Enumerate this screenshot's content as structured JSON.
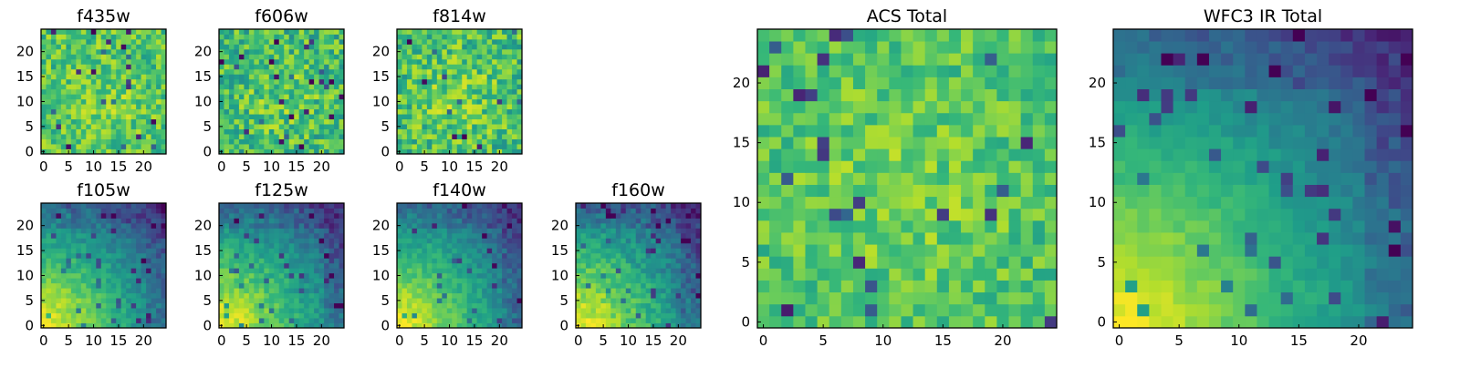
{
  "chart_data": [
    {
      "type": "heatmap",
      "title": "f435w",
      "colormap": "viridis",
      "rows": 25,
      "cols": 25,
      "xlim": [
        0,
        24
      ],
      "ylim": [
        0,
        24
      ],
      "x_ticks": [
        "0",
        "5",
        "10",
        "15",
        "20"
      ],
      "y_ticks": [
        "0",
        "5",
        "10",
        "15",
        "20"
      ],
      "value_range": [
        0,
        1
      ],
      "pattern": "noise",
      "mean": 0.72,
      "noise": 0.18
    },
    {
      "type": "heatmap",
      "title": "f606w",
      "colormap": "viridis",
      "rows": 25,
      "cols": 25,
      "xlim": [
        0,
        24
      ],
      "ylim": [
        0,
        24
      ],
      "x_ticks": [
        "0",
        "5",
        "10",
        "15",
        "20"
      ],
      "y_ticks": [
        "0",
        "5",
        "10",
        "15",
        "20"
      ],
      "value_range": [
        0,
        1
      ],
      "pattern": "noise",
      "mean": 0.68,
      "noise": 0.2
    },
    {
      "type": "heatmap",
      "title": "f814w",
      "colormap": "viridis",
      "rows": 25,
      "cols": 25,
      "xlim": [
        0,
        24
      ],
      "ylim": [
        0,
        24
      ],
      "x_ticks": [
        "0",
        "5",
        "10",
        "15",
        "20"
      ],
      "y_ticks": [
        "0",
        "5",
        "10",
        "15",
        "20"
      ],
      "value_range": [
        0,
        1
      ],
      "pattern": "noise",
      "mean": 0.7,
      "noise": 0.2
    },
    {
      "type": "heatmap",
      "title": "f105w",
      "colormap": "viridis",
      "rows": 25,
      "cols": 25,
      "xlim": [
        0,
        24
      ],
      "ylim": [
        0,
        24
      ],
      "x_ticks": [
        "0",
        "5",
        "10",
        "15",
        "20"
      ],
      "y_ticks": [
        "0",
        "5",
        "10",
        "15",
        "20"
      ],
      "value_range": [
        0,
        1
      ],
      "pattern": "gradient",
      "mean": 0.6,
      "noise": 0.08
    },
    {
      "type": "heatmap",
      "title": "f125w",
      "colormap": "viridis",
      "rows": 25,
      "cols": 25,
      "xlim": [
        0,
        24
      ],
      "ylim": [
        0,
        24
      ],
      "x_ticks": [
        "0",
        "5",
        "10",
        "15",
        "20"
      ],
      "y_ticks": [
        "0",
        "5",
        "10",
        "15",
        "20"
      ],
      "value_range": [
        0,
        1
      ],
      "pattern": "gradient",
      "mean": 0.58,
      "noise": 0.09
    },
    {
      "type": "heatmap",
      "title": "f140w",
      "colormap": "viridis",
      "rows": 25,
      "cols": 25,
      "xlim": [
        0,
        24
      ],
      "ylim": [
        0,
        24
      ],
      "x_ticks": [
        "0",
        "5",
        "10",
        "15",
        "20"
      ],
      "y_ticks": [
        "0",
        "5",
        "10",
        "15",
        "20"
      ],
      "value_range": [
        0,
        1
      ],
      "pattern": "gradient",
      "mean": 0.5,
      "noise": 0.08
    },
    {
      "type": "heatmap",
      "title": "f160w",
      "colormap": "viridis",
      "rows": 25,
      "cols": 25,
      "xlim": [
        0,
        24
      ],
      "ylim": [
        0,
        24
      ],
      "x_ticks": [
        "0",
        "5",
        "10",
        "15",
        "20"
      ],
      "y_ticks": [
        "0",
        "5",
        "10",
        "15",
        "20"
      ],
      "value_range": [
        0,
        1
      ],
      "pattern": "gradient",
      "mean": 0.38,
      "noise": 0.1
    },
    {
      "type": "heatmap",
      "title": "ACS Total",
      "colormap": "viridis",
      "rows": 25,
      "cols": 25,
      "xlim": [
        0,
        24
      ],
      "ylim": [
        0,
        24
      ],
      "x_ticks": [
        "0",
        "5",
        "10",
        "15",
        "20"
      ],
      "y_ticks": [
        "0",
        "5",
        "10",
        "15",
        "20"
      ],
      "value_range": [
        0,
        1
      ],
      "pattern": "noise",
      "mean": 0.72,
      "noise": 0.14
    },
    {
      "type": "heatmap",
      "title": "WFC3 IR Total",
      "colormap": "viridis",
      "rows": 25,
      "cols": 25,
      "xlim": [
        0,
        24
      ],
      "ylim": [
        0,
        24
      ],
      "x_ticks": [
        "0",
        "5",
        "10",
        "15",
        "20"
      ],
      "y_ticks": [
        "0",
        "5",
        "10",
        "15",
        "20"
      ],
      "value_range": [
        0,
        1
      ],
      "pattern": "gradient",
      "mean": 0.45,
      "noise": 0.05
    }
  ]
}
